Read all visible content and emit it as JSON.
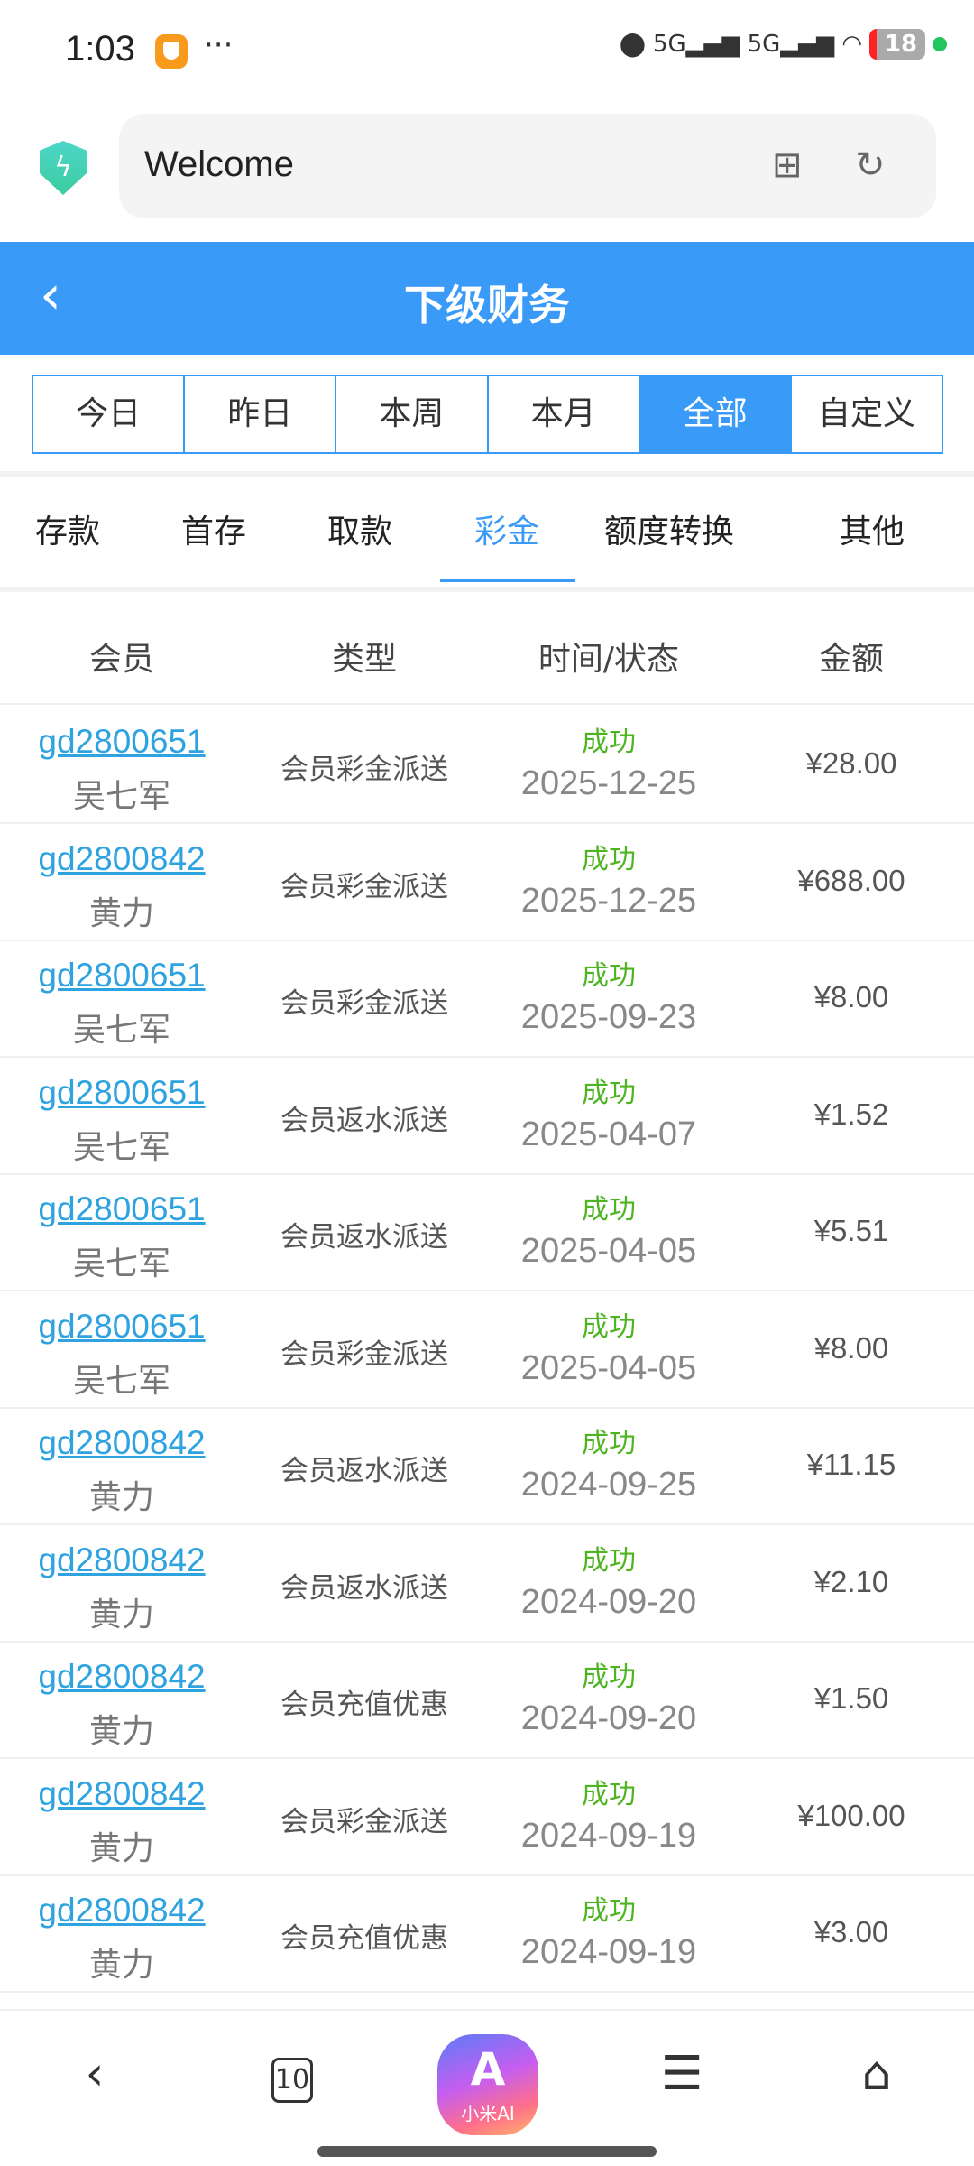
{
  "status_bar": {
    "time": "1:03",
    "battery": "18"
  },
  "browser": {
    "url_title": "Welcome",
    "tab_count": "10",
    "ai_label": "小米AI"
  },
  "header": {
    "title": "下级财务"
  },
  "filters": [
    {
      "label": "今日"
    },
    {
      "label": "昨日"
    },
    {
      "label": "本周"
    },
    {
      "label": "本月"
    },
    {
      "label": "全部",
      "active": true
    },
    {
      "label": "自定义"
    }
  ],
  "tabs": [
    {
      "label": "存款"
    },
    {
      "label": "首存"
    },
    {
      "label": "取款"
    },
    {
      "label": "彩金",
      "active": true
    },
    {
      "label": "额度转换"
    },
    {
      "label": "其他"
    }
  ],
  "table": {
    "columns": [
      "会员",
      "类型",
      "时间/状态",
      "金额"
    ],
    "rows": [
      {
        "id": "gd2800651",
        "name": "吴七军",
        "type": "会员彩金派送",
        "status": "成功",
        "date": "2025-12-25",
        "amount": "¥28.00"
      },
      {
        "id": "gd2800842",
        "name": "黄力",
        "type": "会员彩金派送",
        "status": "成功",
        "date": "2025-12-25",
        "amount": "¥688.00"
      },
      {
        "id": "gd2800651",
        "name": "吴七军",
        "type": "会员彩金派送",
        "status": "成功",
        "date": "2025-09-23",
        "amount": "¥8.00"
      },
      {
        "id": "gd2800651",
        "name": "吴七军",
        "type": "会员返水派送",
        "status": "成功",
        "date": "2025-04-07",
        "amount": "¥1.52"
      },
      {
        "id": "gd2800651",
        "name": "吴七军",
        "type": "会员返水派送",
        "status": "成功",
        "date": "2025-04-05",
        "amount": "¥5.51"
      },
      {
        "id": "gd2800651",
        "name": "吴七军",
        "type": "会员彩金派送",
        "status": "成功",
        "date": "2025-04-05",
        "amount": "¥8.00"
      },
      {
        "id": "gd2800842",
        "name": "黄力",
        "type": "会员返水派送",
        "status": "成功",
        "date": "2024-09-25",
        "amount": "¥11.15"
      },
      {
        "id": "gd2800842",
        "name": "黄力",
        "type": "会员返水派送",
        "status": "成功",
        "date": "2024-09-20",
        "amount": "¥2.10"
      },
      {
        "id": "gd2800842",
        "name": "黄力",
        "type": "会员充值优惠",
        "status": "成功",
        "date": "2024-09-20",
        "amount": "¥1.50"
      },
      {
        "id": "gd2800842",
        "name": "黄力",
        "type": "会员彩金派送",
        "status": "成功",
        "date": "2024-09-19",
        "amount": "¥100.00"
      },
      {
        "id": "gd2800842",
        "name": "黄力",
        "type": "会员充值优惠",
        "status": "成功",
        "date": "2024-09-19",
        "amount": "¥3.00"
      }
    ]
  },
  "colors": {
    "accent": "#3a9af7",
    "link": "#2fa3e0",
    "success": "#4fb422"
  }
}
